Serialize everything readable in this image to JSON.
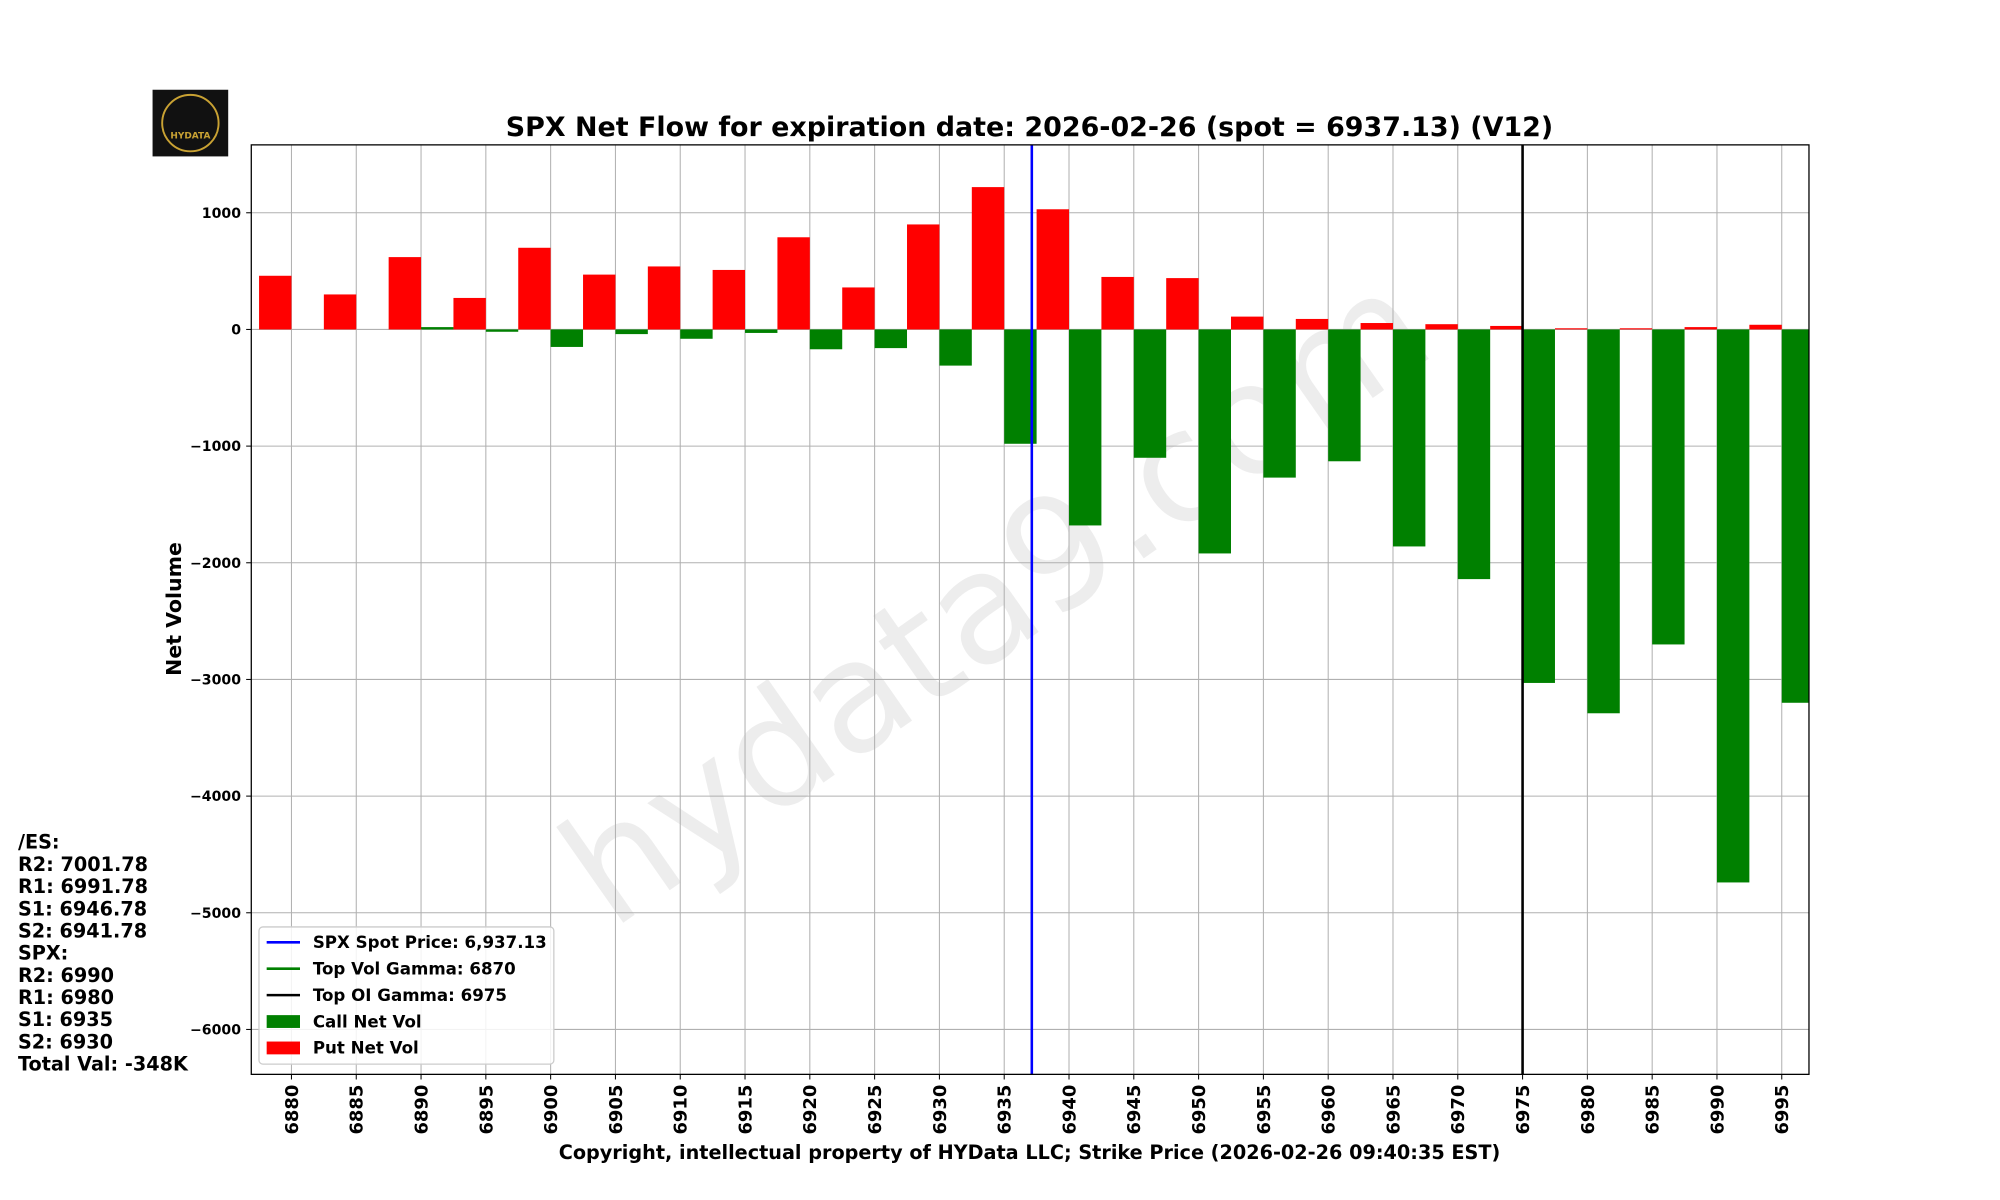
{
  "chart_data": {
    "type": "bar",
    "title": "SPX Net Flow for expiration date: 2026-02-26 (spot = 6937.13) (V12)",
    "y_label": "Net Volume",
    "x_label": "Copyright, intellectual property of HYData LLC; Strike Price (2026-02-26 09:40:35 EST)",
    "watermark": "hydata9.com",
    "logo_text": "HYDATA",
    "x": [
      6880,
      6885,
      6890,
      6895,
      6900,
      6905,
      6910,
      6915,
      6920,
      6925,
      6930,
      6935,
      6940,
      6945,
      6950,
      6955,
      6960,
      6965,
      6970,
      6975,
      6980,
      6985,
      6990,
      6995
    ],
    "xlim": [
      6876.9,
      6997.1
    ],
    "xticks": [
      6880,
      6885,
      6890,
      6895,
      6900,
      6905,
      6910,
      6915,
      6920,
      6925,
      6930,
      6935,
      6940,
      6945,
      6950,
      6955,
      6960,
      6965,
      6970,
      6975,
      6980,
      6985,
      6990,
      6995
    ],
    "ylim": [
      -6385,
      1582
    ],
    "yticks": [
      {
        "value": -6000,
        "label": "−6000"
      },
      {
        "value": -5000,
        "label": "−5000"
      },
      {
        "value": -4000,
        "label": "−4000"
      },
      {
        "value": -3000,
        "label": "−3000"
      },
      {
        "value": -2000,
        "label": "−2000"
      },
      {
        "value": -1000,
        "label": "−1000"
      },
      0,
      1000
    ],
    "grid": true,
    "legend": "lower left",
    "reference_lines": [
      {
        "name": "SPX Spot Price: 6,937.13",
        "color": "#0000ff",
        "x": 6937.13
      },
      {
        "name": "Top Vol Gamma: 6870",
        "color": "#008000",
        "x": 6870
      },
      {
        "name": "Top OI Gamma: 6975",
        "color": "#000000",
        "x": 6975
      }
    ],
    "series": [
      {
        "name": "Call Net Vol",
        "color": "#008000",
        "values": [
          0,
          0,
          20,
          -20,
          -150,
          -40,
          -80,
          -30,
          -170,
          -160,
          -310,
          -980,
          -1680,
          -1100,
          -1920,
          -1270,
          -1130,
          -1860,
          -2140,
          -3030,
          -3290,
          -2700,
          -4740,
          -3200
        ]
      },
      {
        "name": "Put Net Vol",
        "color": "#ff0000",
        "values": [
          460,
          300,
          620,
          270,
          700,
          470,
          540,
          510,
          790,
          360,
          900,
          1220,
          1030,
          450,
          440,
          110,
          90,
          55,
          45,
          30,
          10,
          10,
          20,
          40
        ]
      }
    ],
    "side_panel": [
      "/ES:",
      "R2: 7001.78",
      "R1: 6991.78",
      "S1: 6946.78",
      "S2: 6941.78",
      "SPX:",
      "R2: 6990",
      "R1: 6980",
      "S1: 6935",
      "S2: 6930",
      "Total Val: -348K"
    ]
  }
}
